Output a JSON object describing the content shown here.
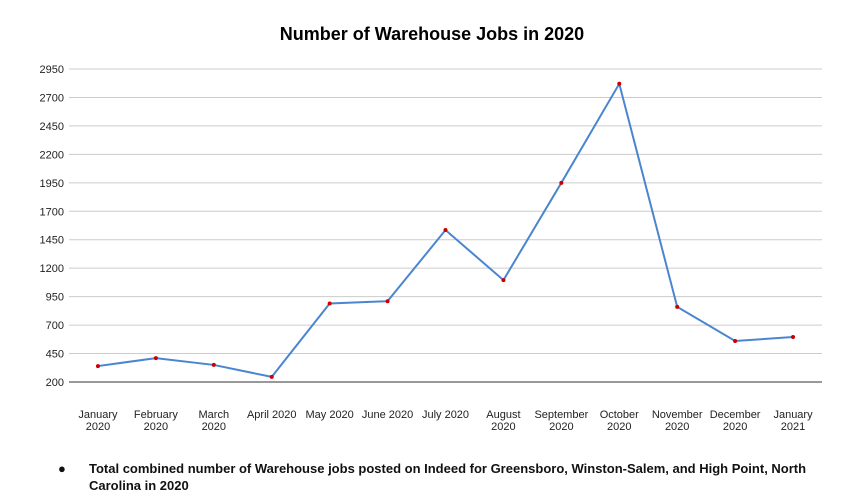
{
  "chart_data": {
    "type": "line",
    "title": "Number of Warehouse Jobs in 2020",
    "categories": [
      "January\n2020",
      "February\n2020",
      "March\n2020",
      "April 2020",
      "May 2020",
      "June 2020",
      "July 2020",
      "August\n2020",
      "September\n2020",
      "October\n2020",
      "November\n2020",
      "December\n2020",
      "January\n2021"
    ],
    "series": [
      {
        "name": "Warehouse jobs",
        "color": "#4a86d0",
        "marker_color": "#cc0000",
        "values": [
          340,
          410,
          350,
          245,
          890,
          910,
          1535,
          1095,
          1950,
          2820,
          860,
          560,
          595
        ]
      }
    ],
    "ylim": [
      200,
      2950
    ],
    "yticks": [
      200,
      450,
      700,
      950,
      1200,
      1450,
      1700,
      1950,
      2200,
      2450,
      2700,
      2950
    ],
    "grid": true,
    "note": "Total combined number of Warehouse jobs posted on Indeed for Greensboro, Winston-Salem, and High Point, North Carolina in 2020"
  }
}
